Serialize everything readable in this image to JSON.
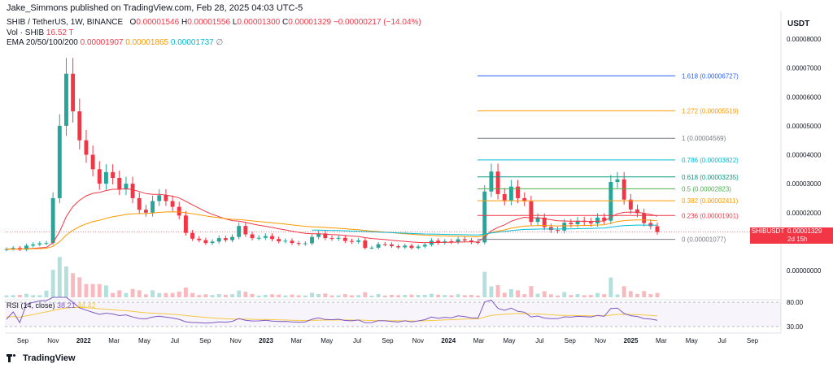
{
  "header": {
    "published": "Jake_Simmons published on TradingView.com, Feb 28, 2025 04:03 UTC-5"
  },
  "legend": {
    "symbol": "SHIB / TetherUS, 1W, BINANCE",
    "open_label": "O",
    "open": "0.00001546",
    "high_label": "H",
    "high": "0.00001556",
    "low_label": "L",
    "low": "0.00001300",
    "close_label": "C",
    "close": "0.00001329",
    "change": "−0.00000217 (−14.04%)",
    "vol_label": "Vol · SHIB",
    "vol": "16.52 T",
    "ema_label": "EMA 20/50/100/200",
    "ema20": "0.00001907",
    "ema50": "0.00001865",
    "ema100": "0.00001737",
    "ema200": "∅"
  },
  "rsi": {
    "label": "RSI (14, close)",
    "value1": "38.21",
    "value2": "44.42",
    "eye_icon": "eye-icon"
  },
  "price_tag": {
    "symbol": "SHIBUSDT",
    "countdown": "2d 15h",
    "value": "0.00001329"
  },
  "branding": {
    "name": "TradingView"
  },
  "colors": {
    "up": "#26a69a",
    "down": "#f23645",
    "ema20": "#f23645",
    "ema50": "#ff9800",
    "ema100": "#00bcd4",
    "rsi": "#7e57c2",
    "rsi_ma": "#f5c842"
  },
  "chart_data": {
    "type": "candlestick",
    "price_axis": {
      "title": "USDT",
      "ticks": [
        "0.00008000",
        "0.00007000",
        "0.00006000",
        "0.00005000",
        "0.00004000",
        "0.00003000",
        "0.00002000",
        "0.00000000"
      ],
      "tick_values": [
        8e-05,
        7e-05,
        6e-05,
        5e-05,
        4e-05,
        3e-05,
        2e-05,
        0.0
      ],
      "range": [
        0.0,
        8e-05
      ]
    },
    "rsi_axis": {
      "ticks": [
        "80.00",
        "30.00"
      ],
      "tick_values": [
        80,
        30
      ]
    },
    "time_axis": {
      "labels": [
        "Sep",
        "Nov",
        "2022",
        "Mar",
        "May",
        "Jul",
        "Sep",
        "Nov",
        "2023",
        "Mar",
        "May",
        "Jul",
        "Sep",
        "Nov",
        "2024",
        "Mar",
        "May",
        "Jul",
        "Sep",
        "Nov",
        "2025",
        "Mar",
        "May",
        "Jul",
        "Sep"
      ],
      "bold": [
        false,
        false,
        true,
        false,
        false,
        false,
        false,
        false,
        true,
        false,
        false,
        false,
        false,
        false,
        true,
        false,
        false,
        false,
        false,
        false,
        true,
        false,
        false,
        false,
        false
      ]
    },
    "fibonacci": [
      {
        "ratio": "1.618",
        "value": 6.727e-05,
        "label": "1.618 (0.00006727)",
        "color": "#2962ff"
      },
      {
        "ratio": "1.272",
        "value": 5.519e-05,
        "label": "1.272 (0.00005519)",
        "color": "#ff9800"
      },
      {
        "ratio": "1",
        "value": 4.569e-05,
        "label": "1 (0.00004569)",
        "color": "#787b86"
      },
      {
        "ratio": "0.786",
        "value": 3.822e-05,
        "label": "0.786 (0.00003822)",
        "color": "#00bcd4"
      },
      {
        "ratio": "0.618",
        "value": 3.235e-05,
        "label": "0.618 (0.00003235)",
        "color": "#089981"
      },
      {
        "ratio": "0.5",
        "value": 2.823e-05,
        "label": "0.5 (0.00002823)",
        "color": "#4caf50"
      },
      {
        "ratio": "0.382",
        "value": 2.411e-05,
        "label": "0.382 (0.00002411)",
        "color": "#ff9800"
      },
      {
        "ratio": "0.236",
        "value": 1.901e-05,
        "label": "0.236 (0.00001901)",
        "color": "#f23645"
      },
      {
        "ratio": "0",
        "value": 1.077e-05,
        "label": "0 (0.00001077)",
        "color": "#787b86"
      }
    ],
    "series": [
      {
        "name": "SHIB / TetherUS",
        "ohlc_week_closes": [
          7.4e-06,
          7.8e-06,
          7.2e-06,
          8.6e-06,
          9e-06,
          9.4e-06,
          9.5e-06,
          2.5e-05,
          5e-05,
          6.8e-05,
          5.5e-05,
          4.5e-05,
          4e-05,
          3.5e-05,
          3e-05,
          3.4e-05,
          3.2e-05,
          2.8e-05,
          3e-05,
          2.5e-05,
          2.1e-05,
          2e-05,
          2.4e-05,
          2.6e-05,
          2.4e-05,
          2.2e-05,
          1.9e-05,
          1.3e-05,
          1.1e-05,
          1.05e-05,
          9.5e-06,
          1e-05,
          1.12e-05,
          1.05e-05,
          1.16e-05,
          1.54e-05,
          1.25e-05,
          1.12e-05,
          1.13e-05,
          1.19e-05,
          1.09e-05,
          1.01e-05,
          1.03e-05,
          9.5e-06,
          9.2e-06,
          9.4e-06,
          1.16e-05,
          1.28e-05,
          1.12e-05,
          1.1e-05,
          1.13e-05,
          1.02e-05,
          9.9e-06,
          1.04e-05,
          7.8e-06,
          7.9e-06,
          9.1e-06,
          9e-06,
          8.4e-06,
          8e-06,
          8.6e-06,
          7.8e-06,
          8.3e-06,
          8.9e-06,
          1.03e-05,
          9.6e-06,
          1.01e-05,
          9.8e-06,
          1.08e-05,
          1.04e-05,
          9.8e-06,
          9.7e-06,
          2.73e-05,
          3.42e-05,
          2.64e-05,
          2.42e-05,
          2.9e-05,
          2.5e-05,
          2.39e-05,
          1.68e-05,
          1.83e-05,
          1.5e-05,
          1.4e-05,
          1.38e-05,
          1.65e-05,
          1.6e-05,
          1.72e-05,
          1.68e-05,
          1.63e-05,
          1.83e-05,
          1.72e-05,
          3.06e-05,
          3.15e-05,
          2.45e-05,
          2.11e-05,
          1.98e-05,
          1.64e-05,
          1.53e-05,
          1.33e-05
        ]
      }
    ]
  }
}
